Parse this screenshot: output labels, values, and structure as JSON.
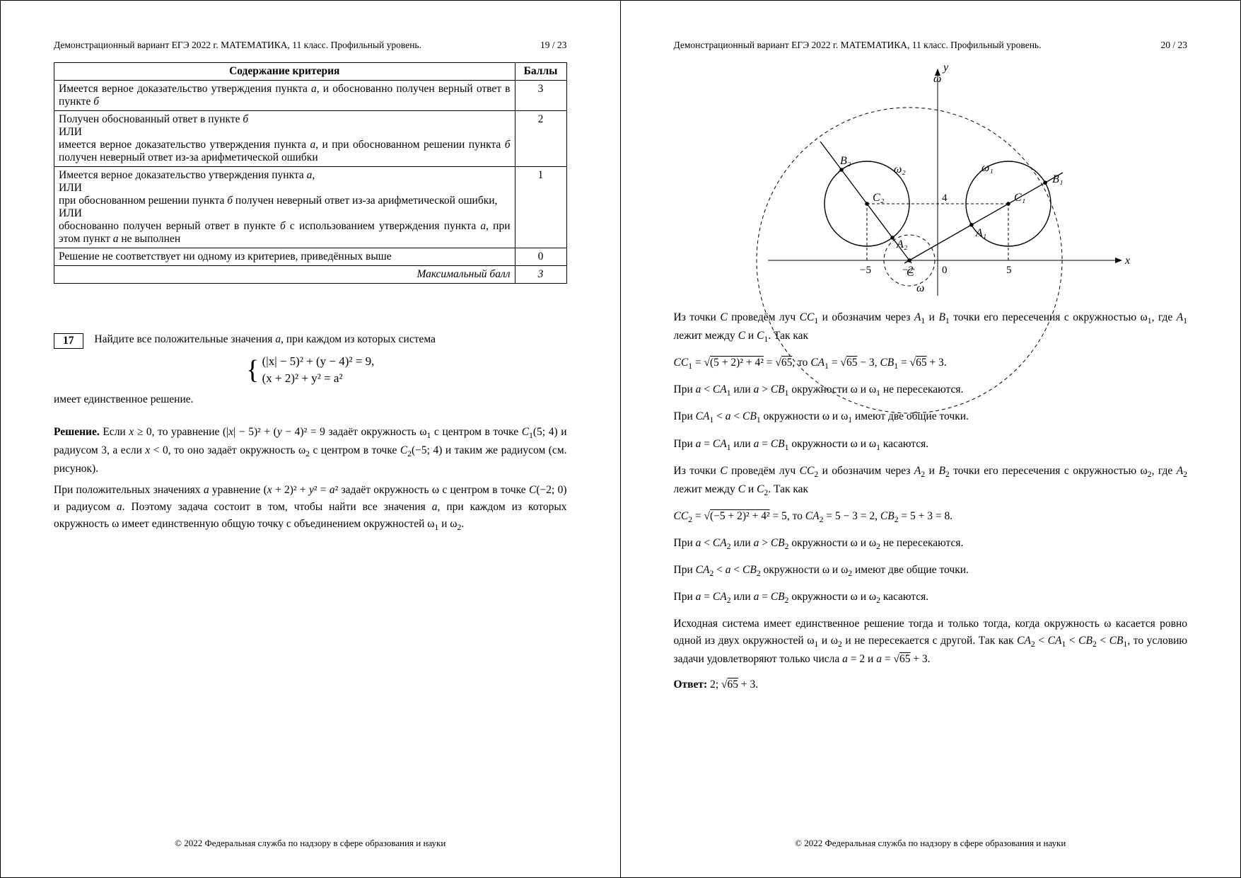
{
  "header": {
    "text": "Демонстрационный вариант ЕГЭ 2022 г.     МАТЕМАТИКА, 11 класс. Профильный уровень.",
    "page_left": "19 / 23",
    "page_right": "20 / 23"
  },
  "footer": "© 2022 Федеральная служба по надзору в сфере образования и науки",
  "criteria_table": {
    "col1_header": "Содержание критерия",
    "col2_header": "Баллы",
    "rows": [
      {
        "text": "Имеется верное доказательство утверждения пункта <i>а</i>, и обоснованно получен верный ответ в пункте <i>б</i>",
        "score": "3"
      },
      {
        "text": "Получен обоснованный ответ в пункте <i>б</i><br>ИЛИ<br>имеется верное доказательство утверждения пункта <i>а</i>, и при обоснованном решении пункта <i>б</i> получен неверный ответ из-за арифметической ошибки",
        "score": "2"
      },
      {
        "text": "Имеется верное доказательство утверждения пункта <i>а</i>,<br>ИЛИ<br>при обоснованном решении пункта <i>б</i> получен неверный ответ из-за арифметической ошибки,<br>ИЛИ<br>обоснованно получен верный ответ в пункте <i>б</i> с использованием утверждения пункта <i>а</i>, при этом пункт <i>а</i> не выполнен",
        "score": "1"
      },
      {
        "text": "Решение не соответствует ни одному из критериев, приведённых выше",
        "score": "0"
      },
      {
        "text_right": "Максимальный балл",
        "score_ital": "3"
      }
    ]
  },
  "problem": {
    "number": "17",
    "statement": "Найдите все положительные значения <i>a</i>, при каждом из которых система",
    "system_line1": "(|x| − 5)² + (y − 4)² = 9,",
    "system_line2": "(x + 2)² + y² = a²",
    "statement_tail": "имеет единственное решение.",
    "solution_head": "Решение.",
    "solution_p1": "Если <i>x</i> ≥ 0, то уравнение (|<i>x</i>| − 5)² + (<i>y</i> − 4)² = 9 задаёт окружность ω<sub>1</sub> с центром в точке <i>C</i><sub>1</sub>(5; 4) и радиусом 3, а если <i>x</i> < 0, то оно задаёт окружность ω<sub>2</sub> с центром в точке <i>C</i><sub>2</sub>(−5; 4) и таким же радиусом (см. рисунок).",
    "solution_p2": "При положительных значениях <i>a</i> уравнение (<i>x</i> + 2)² + <i>y</i>² = <i>a</i>² задаёт окружность ω с центром в точке <i>C</i>(−2; 0) и радиусом <i>a</i>. Поэтому задача состоит в том, чтобы найти все значения <i>a</i>, при каждом из которых окружность ω имеет единственную общую точку с объединением окружностей ω<sub>1</sub> и ω<sub>2</sub>."
  },
  "figure": {
    "omega_big_dashed_radius": 216,
    "omega_small_dashed_radius": 36,
    "circle_radius": 60,
    "background": "#ffffff",
    "stroke": "#000000",
    "scale": 20,
    "labels": {
      "y": "y",
      "x": "x",
      "w": "ω",
      "w1": "ω₁",
      "w2": "ω₂",
      "B1": "B₁",
      "B2": "B₂",
      "C1": "C₁",
      "C2": "C₂",
      "A1": "A₁",
      "A2": "A₂",
      "C": "C",
      "neg5": "−5",
      "neg2": "−2",
      "zero": "0",
      "five": "5",
      "four": "4"
    }
  },
  "right_text": {
    "p1": "Из точки <i>C</i> проведём луч <i>CC</i><sub>1</sub> и обозначим через <i>A</i><sub>1</sub> и <i>B</i><sub>1</sub> точки его пересечения с окружностью ω<sub>1</sub>, где <i>A</i><sub>1</sub> лежит между <i>C</i> и <i>C</i><sub>1</sub>. Так как",
    "eq1": "<i>CC</i><sub>1</sub> = √<span class=\"sqrt\">(5 + 2)² + 4²</span> = √<span class=\"sqrt\">65</span>, то <i>CA</i><sub>1</sub> = √<span class=\"sqrt\">65</span> − 3,  <i>CB</i><sub>1</sub> = √<span class=\"sqrt\">65</span> + 3.",
    "p2": "При <i>a</i> < <i>CA</i><sub>1</sub> или <i>a</i> > <i>CB</i><sub>1</sub> окружности ω и ω<sub>1</sub> не пересекаются.",
    "p3": "При <i>CA</i><sub>1</sub> < <i>a</i> < <i>CB</i><sub>1</sub> окружности ω и ω<sub>1</sub> имеют две общие точки.",
    "p4": "При <i>a</i> = <i>CA</i><sub>1</sub> или <i>a</i> = <i>CB</i><sub>1</sub> окружности ω и ω<sub>1</sub> касаются.",
    "p5": "Из точки <i>C</i> проведём луч <i>CC</i><sub>2</sub> и обозначим через <i>A</i><sub>2</sub> и <i>B</i><sub>2</sub> точки его пересечения с окружностью ω<sub>2</sub>, где <i>A</i><sub>2</sub> лежит между <i>C</i> и <i>C</i><sub>2</sub>. Так как",
    "eq2": "<i>CC</i><sub>2</sub> = √<span class=\"sqrt\">(−5 + 2)² + 4²</span> = 5, то <i>CA</i><sub>2</sub> = 5 − 3 = 2,  <i>CB</i><sub>2</sub> = 5 + 3 = 8.",
    "p6": "При <i>a</i> < <i>CA</i><sub>2</sub> или <i>a</i> > <i>CB</i><sub>2</sub> окружности ω и ω<sub>2</sub> не пересекаются.",
    "p7": "При <i>CA</i><sub>2</sub> < <i>a</i> < <i>CB</i><sub>2</sub> окружности ω и ω<sub>2</sub> имеют две общие точки.",
    "p8": "При <i>a</i> = <i>CA</i><sub>2</sub> или <i>a</i> = <i>CB</i><sub>2</sub> окружности ω и ω<sub>2</sub> касаются.",
    "p9": "Исходная система имеет единственное решение тогда и только тогда, когда окружность ω касается ровно одной из двух окружностей ω<sub>1</sub> и ω<sub>2</sub> и не пересекается с другой. Так как <i>CA</i><sub>2</sub> < <i>CA</i><sub>1</sub> < <i>CB</i><sub>2</sub> < <i>CB</i><sub>1</sub>, то условию задачи удовлетворяют только числа <i>a</i> = 2 и <i>a</i> = √<span class=\"sqrt\">65</span> + 3.",
    "answer_head": "Ответ:",
    "answer": " 2; √<span class=\"sqrt\">65</span> + 3."
  }
}
